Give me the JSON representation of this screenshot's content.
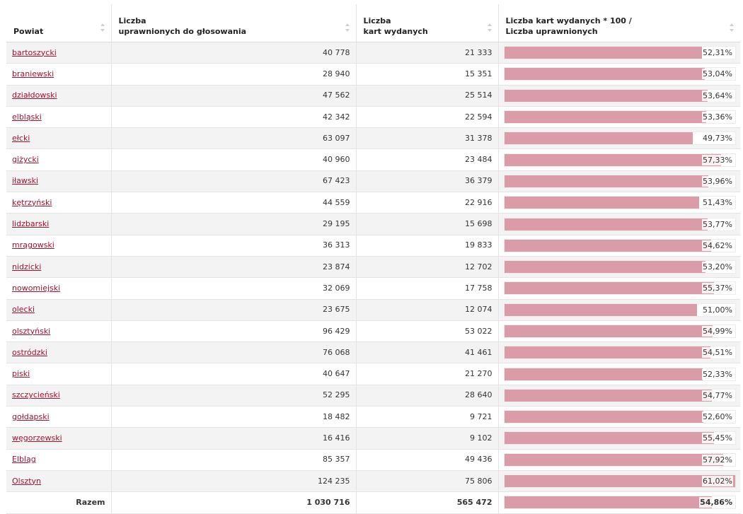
{
  "table": {
    "headers": [
      {
        "line1": "Powiat",
        "line2": ""
      },
      {
        "line1": "Liczba",
        "line2": "uprawnionych do głosowania"
      },
      {
        "line1": "Liczba",
        "line2": "kart wydanych"
      },
      {
        "line1": "Liczba kart wydanych * 100 /",
        "line2": "Liczba uprawnionych"
      }
    ],
    "rows": [
      {
        "powiat": "bartoszycki",
        "uprawnionych": "40 778",
        "wydanych": "21 333",
        "pct_label": "52,31%",
        "pct": 52.31
      },
      {
        "powiat": "braniewski",
        "uprawnionych": "28 940",
        "wydanych": "15 351",
        "pct_label": "53,04%",
        "pct": 53.04
      },
      {
        "powiat": "działdowski",
        "uprawnionych": "47 562",
        "wydanych": "25 514",
        "pct_label": "53,64%",
        "pct": 53.64
      },
      {
        "powiat": "elbląski",
        "uprawnionych": "42 342",
        "wydanych": "22 594",
        "pct_label": "53,36%",
        "pct": 53.36
      },
      {
        "powiat": "ełcki",
        "uprawnionych": "63 097",
        "wydanych": "31 378",
        "pct_label": "49,73%",
        "pct": 49.73
      },
      {
        "powiat": "giżycki",
        "uprawnionych": "40 960",
        "wydanych": "23 484",
        "pct_label": "57,33%",
        "pct": 57.33
      },
      {
        "powiat": "iławski",
        "uprawnionych": "67 423",
        "wydanych": "36 379",
        "pct_label": "53,96%",
        "pct": 53.96
      },
      {
        "powiat": "kętrzyński",
        "uprawnionych": "44 559",
        "wydanych": "22 916",
        "pct_label": "51,43%",
        "pct": 51.43
      },
      {
        "powiat": "lidzbarski",
        "uprawnionych": "29 195",
        "wydanych": "15 698",
        "pct_label": "53,77%",
        "pct": 53.77
      },
      {
        "powiat": "mrągowski",
        "uprawnionych": "36 313",
        "wydanych": "19 833",
        "pct_label": "54,62%",
        "pct": 54.62
      },
      {
        "powiat": "nidzicki",
        "uprawnionych": "23 874",
        "wydanych": "12 702",
        "pct_label": "53,20%",
        "pct": 53.2
      },
      {
        "powiat": "nowomiejski",
        "uprawnionych": "32 069",
        "wydanych": "17 758",
        "pct_label": "55,37%",
        "pct": 55.37
      },
      {
        "powiat": "olecki",
        "uprawnionych": "23 675",
        "wydanych": "12 074",
        "pct_label": "51,00%",
        "pct": 51.0
      },
      {
        "powiat": "olsztyński",
        "uprawnionych": "96 429",
        "wydanych": "53 022",
        "pct_label": "54,99%",
        "pct": 54.99
      },
      {
        "powiat": "ostródzki",
        "uprawnionych": "76 068",
        "wydanych": "41 461",
        "pct_label": "54,51%",
        "pct": 54.51
      },
      {
        "powiat": "piski",
        "uprawnionych": "40 647",
        "wydanych": "21 270",
        "pct_label": "52,33%",
        "pct": 52.33
      },
      {
        "powiat": "szczycieński",
        "uprawnionych": "52 295",
        "wydanych": "28 640",
        "pct_label": "54,77%",
        "pct": 54.77
      },
      {
        "powiat": "gołdapski",
        "uprawnionych": "18 482",
        "wydanych": "9 721",
        "pct_label": "52,60%",
        "pct": 52.6
      },
      {
        "powiat": "węgorzewski",
        "uprawnionych": "16 416",
        "wydanych": "9 102",
        "pct_label": "55,45%",
        "pct": 55.45
      },
      {
        "powiat": "Elbląg",
        "uprawnionych": "85 357",
        "wydanych": "49 436",
        "pct_label": "57,92%",
        "pct": 57.92
      },
      {
        "powiat": "Olsztyn",
        "uprawnionych": "124 235",
        "wydanych": "75 806",
        "pct_label": "61,02%",
        "pct": 61.02
      }
    ],
    "total": {
      "label": "Razem",
      "uprawnionych": "1 030 716",
      "wydanych": "565 472",
      "pct_label": "54,86%",
      "pct": 54.86
    },
    "bar_scale_max": 61.02,
    "colors": {
      "bar": "#d99ca8",
      "link": "#a3112e",
      "stripe": "#f3f3f3"
    }
  }
}
